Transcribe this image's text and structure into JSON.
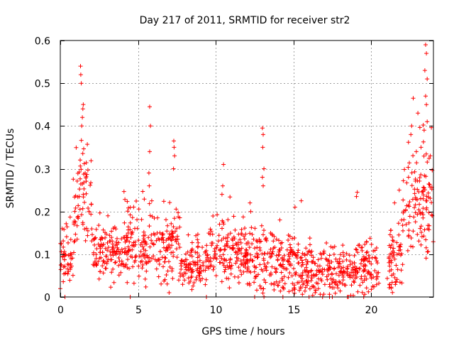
{
  "chart_data": {
    "type": "scatter",
    "title": "Day 217 of 2011, SRMTID for receiver str2",
    "xlabel": "GPS time / hours",
    "ylabel": "SRMTID / TECUs",
    "xlim": [
      0,
      24
    ],
    "ylim": [
      0,
      0.6
    ],
    "xticks": [
      0,
      5,
      10,
      15,
      20
    ],
    "yticks": [
      0,
      0.1,
      0.2,
      0.3,
      0.4,
      0.5,
      0.6
    ],
    "grid": true,
    "marker": "+",
    "color": "#ff0000",
    "series": [
      {
        "name": "SRMTID",
        "segments": [
          {
            "x0": 0.0,
            "x1": 0.8,
            "mean": 0.09,
            "spread": 0.04
          },
          {
            "x0": 0.8,
            "x1": 1.2,
            "mean": 0.18,
            "spread": 0.06
          },
          {
            "x0": 1.2,
            "x1": 2.0,
            "mean": 0.25,
            "spread": 0.08
          },
          {
            "x0": 2.0,
            "x1": 4.0,
            "mean": 0.1,
            "spread": 0.04
          },
          {
            "x0": 4.0,
            "x1": 7.0,
            "mean": 0.12,
            "spread": 0.05
          },
          {
            "x0": 7.0,
            "x1": 7.7,
            "mean": 0.13,
            "spread": 0.06
          },
          {
            "x0": 7.7,
            "x1": 9.5,
            "mean": 0.075,
            "spread": 0.03
          },
          {
            "x0": 9.5,
            "x1": 12.0,
            "mean": 0.1,
            "spread": 0.045
          },
          {
            "x0": 12.0,
            "x1": 15.0,
            "mean": 0.08,
            "spread": 0.045
          },
          {
            "x0": 15.0,
            "x1": 19.0,
            "mean": 0.055,
            "spread": 0.035
          },
          {
            "x0": 19.0,
            "x1": 20.5,
            "mean": 0.07,
            "spread": 0.04
          },
          {
            "x0": 21.0,
            "x1": 22.0,
            "mean": 0.08,
            "spread": 0.05
          },
          {
            "x0": 22.0,
            "x1": 24.0,
            "mean": 0.22,
            "spread": 0.08
          }
        ],
        "outliers": [
          [
            1.3,
            0.54
          ],
          [
            1.32,
            0.52
          ],
          [
            1.35,
            0.5
          ],
          [
            1.45,
            0.44
          ],
          [
            1.42,
            0.42
          ],
          [
            1.38,
            0.4
          ],
          [
            5.75,
            0.445
          ],
          [
            5.8,
            0.4
          ],
          [
            5.75,
            0.34
          ],
          [
            5.7,
            0.29
          ],
          [
            5.72,
            0.26
          ],
          [
            7.3,
            0.365
          ],
          [
            7.32,
            0.35
          ],
          [
            7.35,
            0.33
          ],
          [
            7.28,
            0.3
          ],
          [
            10.5,
            0.31
          ],
          [
            10.45,
            0.26
          ],
          [
            10.4,
            0.24
          ],
          [
            13.0,
            0.395
          ],
          [
            13.05,
            0.38
          ],
          [
            13.02,
            0.35
          ],
          [
            13.1,
            0.3
          ],
          [
            13.0,
            0.28
          ],
          [
            13.05,
            0.26
          ],
          [
            12.2,
            0.22
          ],
          [
            12.25,
            0.2
          ],
          [
            15.5,
            0.225
          ],
          [
            15.1,
            0.21
          ],
          [
            19.1,
            0.245
          ],
          [
            19.05,
            0.235
          ],
          [
            22.7,
            0.465
          ],
          [
            22.6,
            0.4
          ],
          [
            22.55,
            0.38
          ],
          [
            23.0,
            0.43
          ],
          [
            23.5,
            0.59
          ],
          [
            23.55,
            0.57
          ],
          [
            23.45,
            0.53
          ],
          [
            23.6,
            0.51
          ],
          [
            23.5,
            0.47
          ],
          [
            23.55,
            0.45
          ],
          [
            23.6,
            0.41
          ],
          [
            23.4,
            0.39
          ],
          [
            23.2,
            0.35
          ],
          [
            23.8,
            0.33
          ],
          [
            22.9,
            0.34
          ],
          [
            22.4,
            0.28
          ],
          [
            21.5,
            0.22
          ],
          [
            21.8,
            0.25
          ],
          [
            0.3,
            0.0
          ],
          [
            7.0,
            0.01
          ],
          [
            4.5,
            0.0
          ],
          [
            9.4,
            0.0
          ],
          [
            12.5,
            0.0
          ],
          [
            16.0,
            0.0
          ],
          [
            17.5,
            0.0
          ]
        ]
      }
    ]
  }
}
